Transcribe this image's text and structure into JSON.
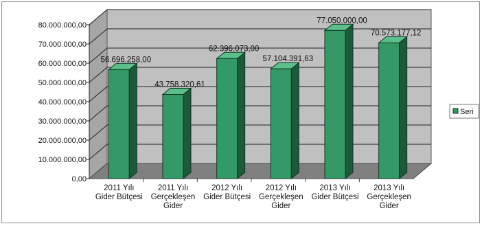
{
  "chart_data": {
    "type": "bar",
    "categories": [
      [
        "2011 Yılı",
        "Gider Bütçesi"
      ],
      [
        "2011 Yılı",
        "Gerçekleşen",
        "Gider"
      ],
      [
        "2012 Yılı",
        "Gider Bütçesi"
      ],
      [
        "2012 Yılı",
        "Gerçekleşen",
        "Gider"
      ],
      [
        "2013 Yılı",
        "Gider Bütçesi"
      ],
      [
        "2013 Yılı",
        "Gerçekleşen",
        "Gider"
      ]
    ],
    "series": [
      {
        "name": "Seri",
        "values": [
          56696258.0,
          43758320.61,
          62396073.0,
          57104391.63,
          77050000.0,
          70573177.12
        ],
        "labels": [
          "56.696.258,00",
          "43.758.320,61",
          "62.396.073,00",
          "57.104.391,63",
          "77.050.000,00",
          "70.573.177,12"
        ]
      }
    ],
    "y_ticks": [
      "0,00",
      "10.000.000,00",
      "20.000.000,00",
      "30.000.000,00",
      "40.000.000,00",
      "50.000.000,00",
      "60.000.000,00",
      "70.000.000,00",
      "80.000.000,00"
    ],
    "ylim": [
      0,
      80000000
    ],
    "grid": true,
    "legend_position": "right",
    "colors": {
      "bar_front": "#339966",
      "bar_side": "#1c5a3a",
      "bar_top": "#5cbf89",
      "wall": "#c0c0c0",
      "floor": "#808080"
    }
  }
}
